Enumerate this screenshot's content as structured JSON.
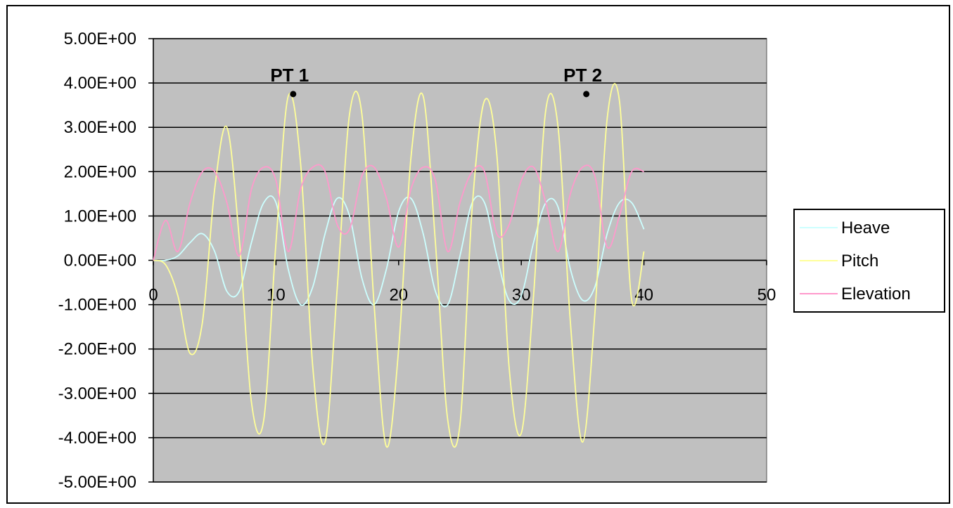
{
  "chart_data": {
    "type": "line",
    "title": "",
    "xlabel": "",
    "ylabel": "",
    "xlim": [
      0,
      50
    ],
    "ylim": [
      -5,
      5
    ],
    "x_ticks": [
      "0",
      "10",
      "20",
      "30",
      "40",
      "50"
    ],
    "y_ticks": [
      "5.00E+00",
      "4.00E+00",
      "3.00E+00",
      "2.00E+00",
      "1.00E+00",
      "0.00E+00",
      "-1.00E+00",
      "-2.00E+00",
      "-3.00E+00",
      "-4.00E+00",
      "-5.00E+00"
    ],
    "grid": "horizontal",
    "legend_position": "right",
    "colors": {
      "plot_background": "#c0c0c0",
      "Heave": "#ccffff",
      "Pitch": "#ffff99",
      "Elevation": "#ff99cc"
    },
    "x": [
      0,
      1,
      2,
      3,
      4,
      5,
      6,
      7,
      8,
      9,
      10,
      11,
      12,
      13,
      14,
      15,
      16,
      17,
      18,
      19,
      20,
      21,
      22,
      23,
      24,
      25,
      26,
      27,
      28,
      29,
      30,
      31,
      32,
      33,
      34,
      35,
      36,
      37,
      38,
      39,
      40
    ],
    "series": [
      {
        "name": "Heave",
        "values": [
          0,
          0,
          0.1,
          0.4,
          0.6,
          0.2,
          -0.7,
          -0.7,
          0.4,
          1.3,
          1.3,
          -0.2,
          -1.0,
          -0.6,
          0.6,
          1.4,
          1.0,
          -0.4,
          -1.0,
          -0.2,
          1.1,
          1.4,
          0.6,
          -0.7,
          -1.0,
          0.1,
          1.3,
          1.3,
          0.1,
          -0.9,
          -0.8,
          0.4,
          1.3,
          1.2,
          -0.2,
          -0.9,
          -0.6,
          0.6,
          1.3,
          1.3,
          0.7
        ]
      },
      {
        "name": "Pitch",
        "values": [
          0,
          -0.1,
          -0.8,
          -2.1,
          -1.4,
          1.6,
          3.0,
          0.5,
          -3.2,
          -3.6,
          0.4,
          3.7,
          2.2,
          -2.4,
          -4.1,
          -0.6,
          3.3,
          3.3,
          -1.0,
          -4.2,
          -2.0,
          2.3,
          3.7,
          0.4,
          -3.6,
          -3.7,
          1.2,
          3.6,
          2.4,
          -2.4,
          -3.9,
          -0.8,
          3.4,
          3.0,
          -1.4,
          -4.1,
          -1.2,
          3.2,
          3.6,
          -0.9,
          0.2
        ]
      },
      {
        "name": "Elevation",
        "values": [
          0,
          0.9,
          0.2,
          1.3,
          2.0,
          2.0,
          1.3,
          0.1,
          1.6,
          2.1,
          1.8,
          0.2,
          1.6,
          2.1,
          2.0,
          0.8,
          0.7,
          1.9,
          2.1,
          1.4,
          0.3,
          1.6,
          2.1,
          1.8,
          0.2,
          1.3,
          2.0,
          2.0,
          0.6,
          0.8,
          1.8,
          2.1,
          1.3,
          0.2,
          1.5,
          2.1,
          1.9,
          0.3,
          1.0,
          2.0,
          2.0
        ]
      }
    ],
    "annotations": [
      {
        "label": "PT 1",
        "x": 11.4,
        "y": 3.75
      },
      {
        "label": "PT 2",
        "x": 35.3,
        "y": 3.75
      }
    ]
  }
}
